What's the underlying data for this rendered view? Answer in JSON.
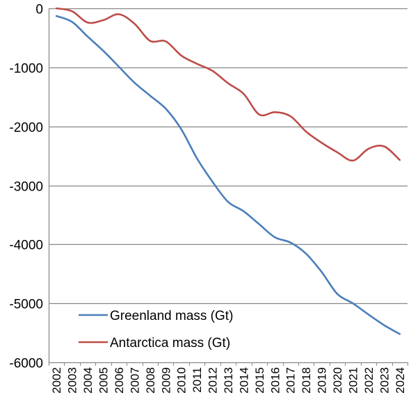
{
  "chart_data": {
    "type": "line",
    "title": "",
    "xlabel": "",
    "ylabel": "",
    "x": [
      2002,
      2003,
      2004,
      2005,
      2006,
      2007,
      2008,
      2009,
      2010,
      2011,
      2012,
      2013,
      2014,
      2015,
      2016,
      2017,
      2018,
      2019,
      2020,
      2021,
      2022,
      2023,
      2024
    ],
    "xticks": [
      "2002",
      "2003",
      "2004",
      "2005",
      "2006",
      "2007",
      "2008",
      "2009",
      "2010",
      "2011",
      "2012",
      "2013",
      "2014",
      "2015",
      "2016",
      "2017",
      "2018",
      "2019",
      "2020",
      "2021",
      "2022",
      "2023",
      "2024"
    ],
    "ylim": [
      -6000,
      0
    ],
    "yticks": [
      0,
      -1000,
      -2000,
      -3000,
      -4000,
      -5000,
      -6000
    ],
    "ytick_labels": [
      "0",
      "-1000",
      "-2000",
      "-3000",
      "-4000",
      "-5000",
      "-6000"
    ],
    "grid": "horizontal",
    "legend_position": "bottom-left",
    "series": [
      {
        "name": "Greenland mass (Gt)",
        "color": "#4a7ebb",
        "values": [
          -130,
          -230,
          -480,
          -720,
          -990,
          -1260,
          -1480,
          -1700,
          -2050,
          -2540,
          -2940,
          -3280,
          -3440,
          -3660,
          -3880,
          -3970,
          -4160,
          -4470,
          -4840,
          -5000,
          -5190,
          -5370,
          -5520
        ]
      },
      {
        "name": "Antarctica mass (Gt)",
        "color": "#be4b48",
        "values": [
          0,
          -50,
          -240,
          -200,
          -100,
          -260,
          -550,
          -560,
          -800,
          -940,
          -1060,
          -1270,
          -1450,
          -1800,
          -1760,
          -1830,
          -2090,
          -2280,
          -2440,
          -2580,
          -2380,
          -2340,
          -2570
        ]
      }
    ]
  }
}
